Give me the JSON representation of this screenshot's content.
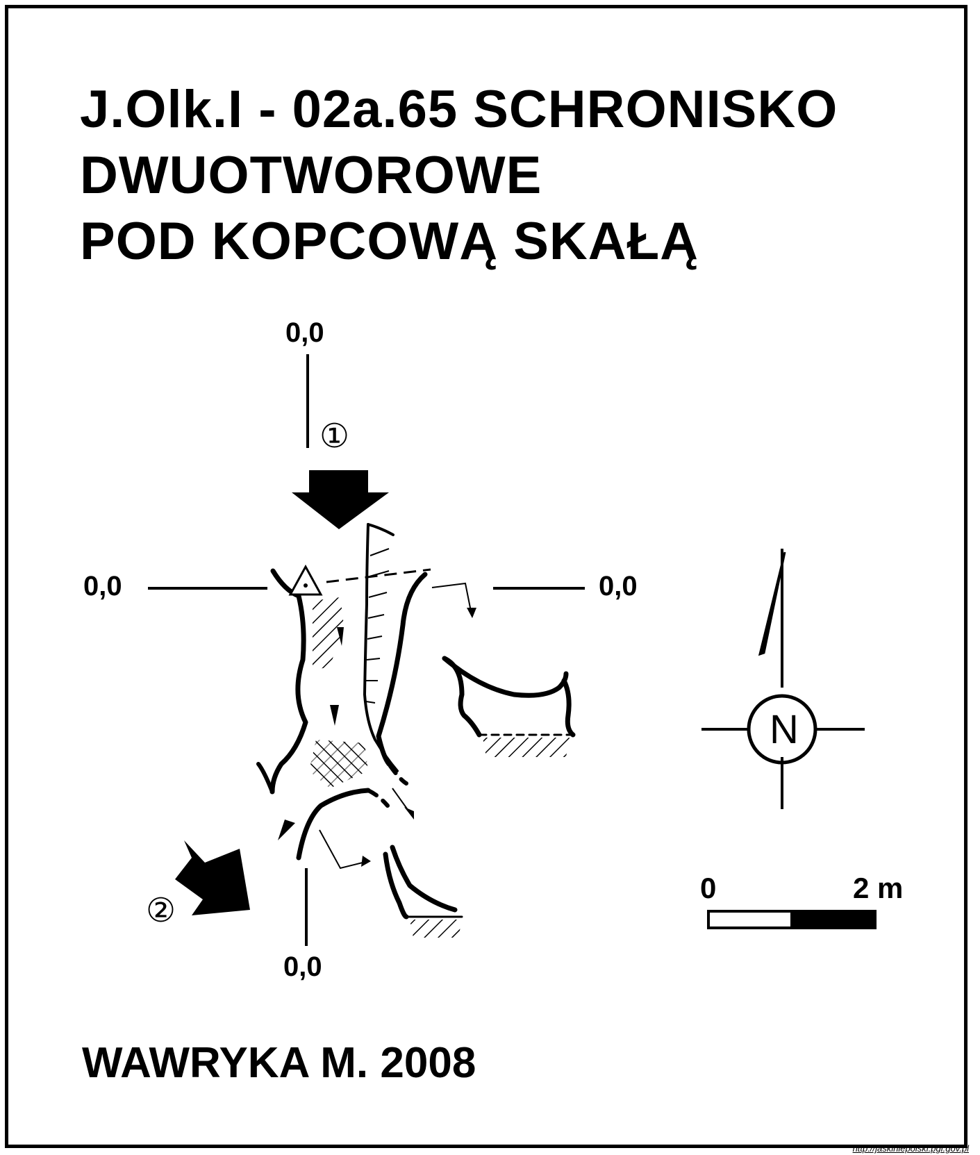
{
  "title": {
    "line1": "J.Olk.I - 02a.65  SCHRONISKO",
    "line2": "DWUOTWOROWE",
    "line3": "POD KOPCOWĄ SKAŁĄ"
  },
  "section_labels": {
    "top": "0,0",
    "left": "0,0",
    "right": "0,0",
    "bottom": "0,0"
  },
  "entrances": {
    "entrance_1": "①",
    "entrance_2": "②"
  },
  "north_arrow": {
    "label": "N"
  },
  "scale_bar": {
    "start": "0",
    "end": "2 m"
  },
  "author": "WAWRYKA M. 2008",
  "source_url": "http://jaskiniepolski.pgi.gov.pl"
}
